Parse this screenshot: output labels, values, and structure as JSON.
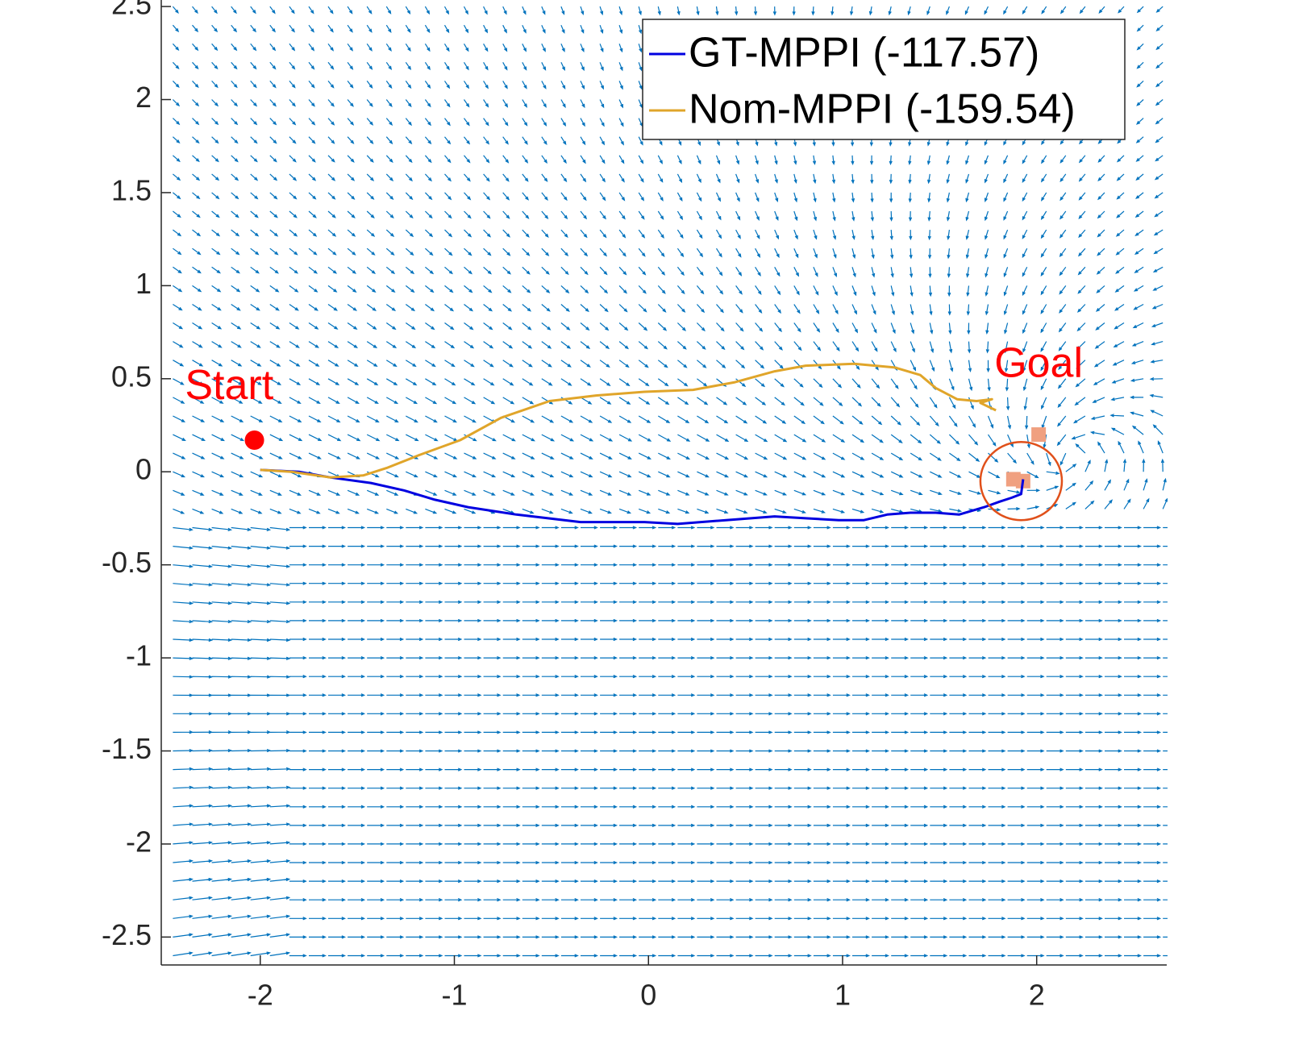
{
  "chart_data": {
    "type": "line",
    "xlim": [
      -2.51,
      2.67
    ],
    "ylim": [
      -2.65,
      2.535
    ],
    "xticks": [
      -2,
      -1,
      0,
      1,
      2
    ],
    "yticks": [
      -2.5,
      -2,
      -1.5,
      -1,
      -0.5,
      0,
      0.5,
      1,
      1.5,
      2,
      2.5
    ],
    "legend_position": "upper right",
    "series": [
      {
        "name": "GT-MPPI (-117.57)",
        "color": "#0000e0",
        "x": [
          -2.0,
          -1.8,
          -1.64,
          -1.43,
          -1.26,
          -1.1,
          -0.93,
          -0.68,
          -0.35,
          -0.02,
          0.15,
          0.4,
          0.65,
          0.81,
          0.98,
          1.11,
          1.23,
          1.35,
          1.48,
          1.6,
          1.73,
          1.81,
          1.87,
          1.92,
          1.93
        ],
        "values": [
          0.01,
          0.0,
          -0.03,
          -0.06,
          -0.1,
          -0.15,
          -0.19,
          -0.23,
          -0.27,
          -0.27,
          -0.28,
          -0.26,
          -0.24,
          -0.25,
          -0.26,
          -0.26,
          -0.23,
          -0.22,
          -0.22,
          -0.23,
          -0.19,
          -0.16,
          -0.14,
          -0.12,
          -0.04
        ]
      },
      {
        "name": "Nom-MPPI (-159.54)",
        "color": "#e0a52a",
        "x": [
          -2.0,
          -1.84,
          -1.64,
          -1.47,
          -1.35,
          -1.18,
          -0.97,
          -0.76,
          -0.51,
          -0.27,
          -0.02,
          0.23,
          0.44,
          0.65,
          0.81,
          1.06,
          1.27,
          1.4,
          1.48,
          1.59,
          1.69,
          1.77,
          1.71,
          1.79
        ],
        "values": [
          0.01,
          0.0,
          -0.03,
          -0.02,
          0.02,
          0.09,
          0.17,
          0.29,
          0.38,
          0.41,
          0.43,
          0.44,
          0.48,
          0.54,
          0.57,
          0.58,
          0.56,
          0.52,
          0.45,
          0.39,
          0.38,
          0.39,
          0.37,
          0.33
        ]
      }
    ],
    "start_marker": {
      "x": -2.03,
      "y": 0.17,
      "color": "#ff0000"
    },
    "goal_region": {
      "x": 1.92,
      "y": -0.05,
      "r": 0.21,
      "color": "#e0501a"
    },
    "obstacles": {
      "color": "#f0a080",
      "x": [
        2.01,
        1.93,
        1.88
      ],
      "y": [
        0.2,
        -0.05,
        -0.04
      ]
    },
    "annotations": [
      {
        "text": "Start",
        "x": -2.16,
        "y": 0.45,
        "color": "#ff0000"
      },
      {
        "text": "Goal",
        "x": 2.01,
        "y": 0.57,
        "color": "#ff0000"
      }
    ]
  }
}
